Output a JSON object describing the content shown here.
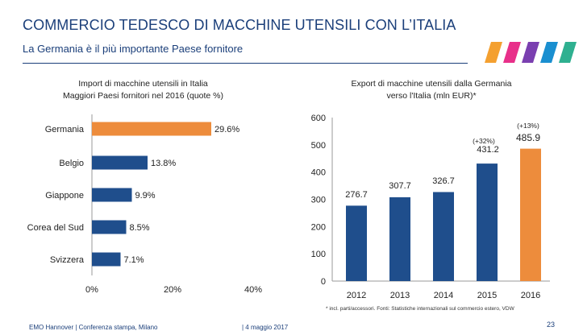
{
  "header": {
    "title": "COMMERCIO TEDESCO DI MACCHINE UTENSILI CON L’ITALIA",
    "subtitle": "La Germania è il più importante Paese fornitore"
  },
  "brand": {
    "stripe_colors": [
      "#f4a030",
      "#e8308a",
      "#7a3fb0",
      "#1a8fd0",
      "#2fb090"
    ]
  },
  "colors": {
    "primary": "#1f4e8c",
    "accent": "#ed8c3c"
  },
  "chart_data": [
    {
      "type": "bar",
      "orientation": "horizontal",
      "title_line1": "Import di macchine utensili in Italia",
      "title_line2": "Maggiori Paesi fornitori nel 2016 (quote %)",
      "categories": [
        "Germania",
        "Belgio",
        "Giappone",
        "Corea del Sud",
        "Svizzera"
      ],
      "values": [
        29.6,
        13.8,
        9.9,
        8.5,
        7.1
      ],
      "labels": [
        "29.6%",
        "13.8%",
        "9.9%",
        "8.5%",
        "7.1%"
      ],
      "highlight_index": 0,
      "xlim": [
        0,
        40
      ],
      "xticks": [
        "0%",
        "20%",
        "40%"
      ]
    },
    {
      "type": "bar",
      "orientation": "vertical",
      "title_line1": "Export di macchine utensili dalla Germania",
      "title_line2": "verso l'Italia (mln EUR)*",
      "categories": [
        "2012",
        "2013",
        "2014",
        "2015",
        "2016"
      ],
      "values": [
        276.7,
        307.7,
        326.7,
        431.2,
        485.9
      ],
      "labels": [
        "276.7",
        "307.7",
        "326.7",
        "431.2",
        "485.9"
      ],
      "highlight_index": 4,
      "ylim": [
        0,
        600
      ],
      "yticks": [
        "0",
        "100",
        "200",
        "300",
        "400",
        "500",
        "600"
      ],
      "annotations": [
        "(+32%)",
        "(+13%)"
      ]
    }
  ],
  "footnote": "* incl. parti/accessori. Fonti: Statistiche internazionali sul commercio estero, VDW",
  "footer": {
    "event": "EMO Hannover | Conferenza stampa, Milano",
    "date": "| 4 maggio 2017",
    "page": "23"
  }
}
